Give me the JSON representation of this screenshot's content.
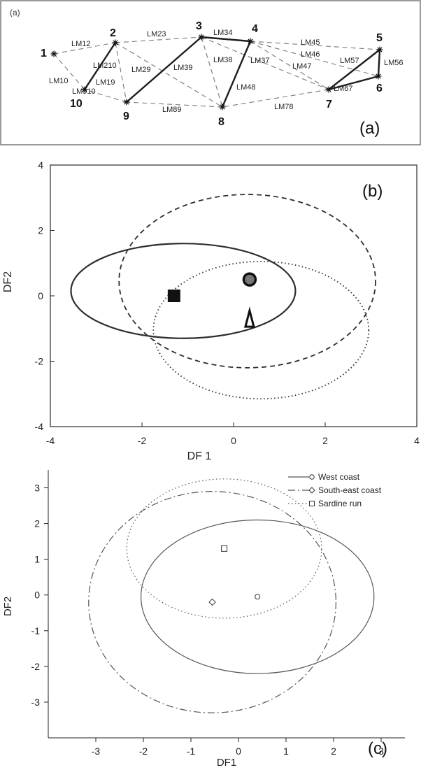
{
  "chart_data": [
    {
      "type": "diagram",
      "panel_label": "(a)",
      "small_panel_label": "(a)",
      "nodes": [
        {
          "id": "1",
          "label": "1"
        },
        {
          "id": "2",
          "label": "2"
        },
        {
          "id": "3",
          "label": "3"
        },
        {
          "id": "4",
          "label": "4"
        },
        {
          "id": "5",
          "label": "5"
        },
        {
          "id": "6",
          "label": "6"
        },
        {
          "id": "7",
          "label": "7"
        },
        {
          "id": "8",
          "label": "8"
        },
        {
          "id": "9",
          "label": "9"
        },
        {
          "id": "10",
          "label": "10"
        }
      ],
      "edges": [
        {
          "from": "1",
          "to": "2",
          "style": "dashed",
          "label": "LM12"
        },
        {
          "from": "1",
          "to": "10",
          "style": "dashed",
          "label": "LM10"
        },
        {
          "from": "2",
          "to": "3",
          "style": "dashed",
          "label": "LM23"
        },
        {
          "from": "2",
          "to": "10",
          "style": "solid",
          "label": "LM210"
        },
        {
          "from": "2",
          "to": "8",
          "style": "dashed",
          "label": "LM29"
        },
        {
          "from": "2",
          "to": "9",
          "style": "dashed",
          "label": "LM19"
        },
        {
          "from": "3",
          "to": "4",
          "style": "solid",
          "label": "LM34"
        },
        {
          "from": "3",
          "to": "9",
          "style": "solid",
          "label": "LM39"
        },
        {
          "from": "3",
          "to": "8",
          "style": "dashed",
          "label": "LM38"
        },
        {
          "from": "3",
          "to": "7",
          "style": "dashed",
          "label": "LM37"
        },
        {
          "from": "4",
          "to": "5",
          "style": "dashed",
          "label": "LM45"
        },
        {
          "from": "4",
          "to": "6",
          "style": "dashed",
          "label": "LM46"
        },
        {
          "from": "4",
          "to": "7",
          "style": "dashed",
          "label": "LM47"
        },
        {
          "from": "4",
          "to": "8",
          "style": "solid",
          "label": "LM48"
        },
        {
          "from": "5",
          "to": "6",
          "style": "solid",
          "label": "LM56"
        },
        {
          "from": "5",
          "to": "7",
          "style": "solid",
          "label": "LM57"
        },
        {
          "from": "6",
          "to": "7",
          "style": "solid",
          "label": "LM67"
        },
        {
          "from": "7",
          "to": "8",
          "style": "dashed",
          "label": "LM78"
        },
        {
          "from": "8",
          "to": "9",
          "style": "dashed",
          "label": "LM89"
        },
        {
          "from": "9",
          "to": "10",
          "style": "dashed",
          "label": "LM910"
        }
      ]
    },
    {
      "type": "scatter",
      "panel_label": "(b)",
      "xlabel": "DF 1",
      "ylabel": "DF2",
      "xlim": [
        -4,
        4
      ],
      "ylim": [
        -4,
        4
      ],
      "grid": false,
      "xticks": [
        -4,
        -2,
        0,
        2,
        4
      ],
      "yticks": [
        -4,
        -2,
        0,
        2,
        4
      ],
      "series": [
        {
          "marker": "filled-square",
          "x": -1.3,
          "y": 0.0,
          "ellipse_style": "solid",
          "center": [
            -1.1,
            0.15
          ],
          "rx": 2.45,
          "ry": 1.45
        },
        {
          "marker": "ringed-circle",
          "x": 0.35,
          "y": 0.5,
          "ellipse_style": "dashed",
          "center": [
            0.3,
            0.45
          ],
          "rx": 2.8,
          "ry": 2.65
        },
        {
          "marker": "hollow-triangle",
          "x": 0.35,
          "y": -0.75,
          "ellipse_style": "dotted",
          "center": [
            0.6,
            -1.05
          ],
          "rx": 2.35,
          "ry": 2.1
        }
      ]
    },
    {
      "type": "scatter",
      "panel_label": "(c)",
      "xlabel": "DF1",
      "ylabel": "DF2",
      "xlim": [
        -4,
        3.5
      ],
      "ylim": [
        -4,
        3.5
      ],
      "grid": false,
      "xticks": [
        -3,
        -2,
        -1,
        0,
        1,
        2,
        3
      ],
      "yticks": [
        -3,
        -2,
        -1,
        0,
        1,
        2,
        3
      ],
      "legend": {
        "placement": "top-right",
        "entries": [
          {
            "label": "West coast",
            "line_style": "solid",
            "marker": "circle"
          },
          {
            "label": "South-east coast",
            "line_style": "dashdot",
            "marker": "diamond"
          },
          {
            "label": "Sardine run",
            "line_style": "dotted",
            "marker": "square"
          }
        ]
      },
      "series": [
        {
          "name": "West coast",
          "x": 0.4,
          "y": -0.05,
          "center": [
            0.4,
            -0.05
          ],
          "rx": 2.45,
          "ry": 2.15,
          "style": "solid",
          "marker": "circle"
        },
        {
          "name": "South-east coast",
          "x": -0.55,
          "y": -0.2,
          "center": [
            -0.55,
            -0.2
          ],
          "rx": 2.6,
          "ry": 3.1,
          "style": "dashdot",
          "marker": "diamond"
        },
        {
          "name": "Sardine run",
          "x": -0.3,
          "y": 1.3,
          "center": [
            -0.3,
            1.3
          ],
          "rx": 2.05,
          "ry": 1.95,
          "style": "dotted",
          "marker": "square"
        }
      ]
    }
  ]
}
